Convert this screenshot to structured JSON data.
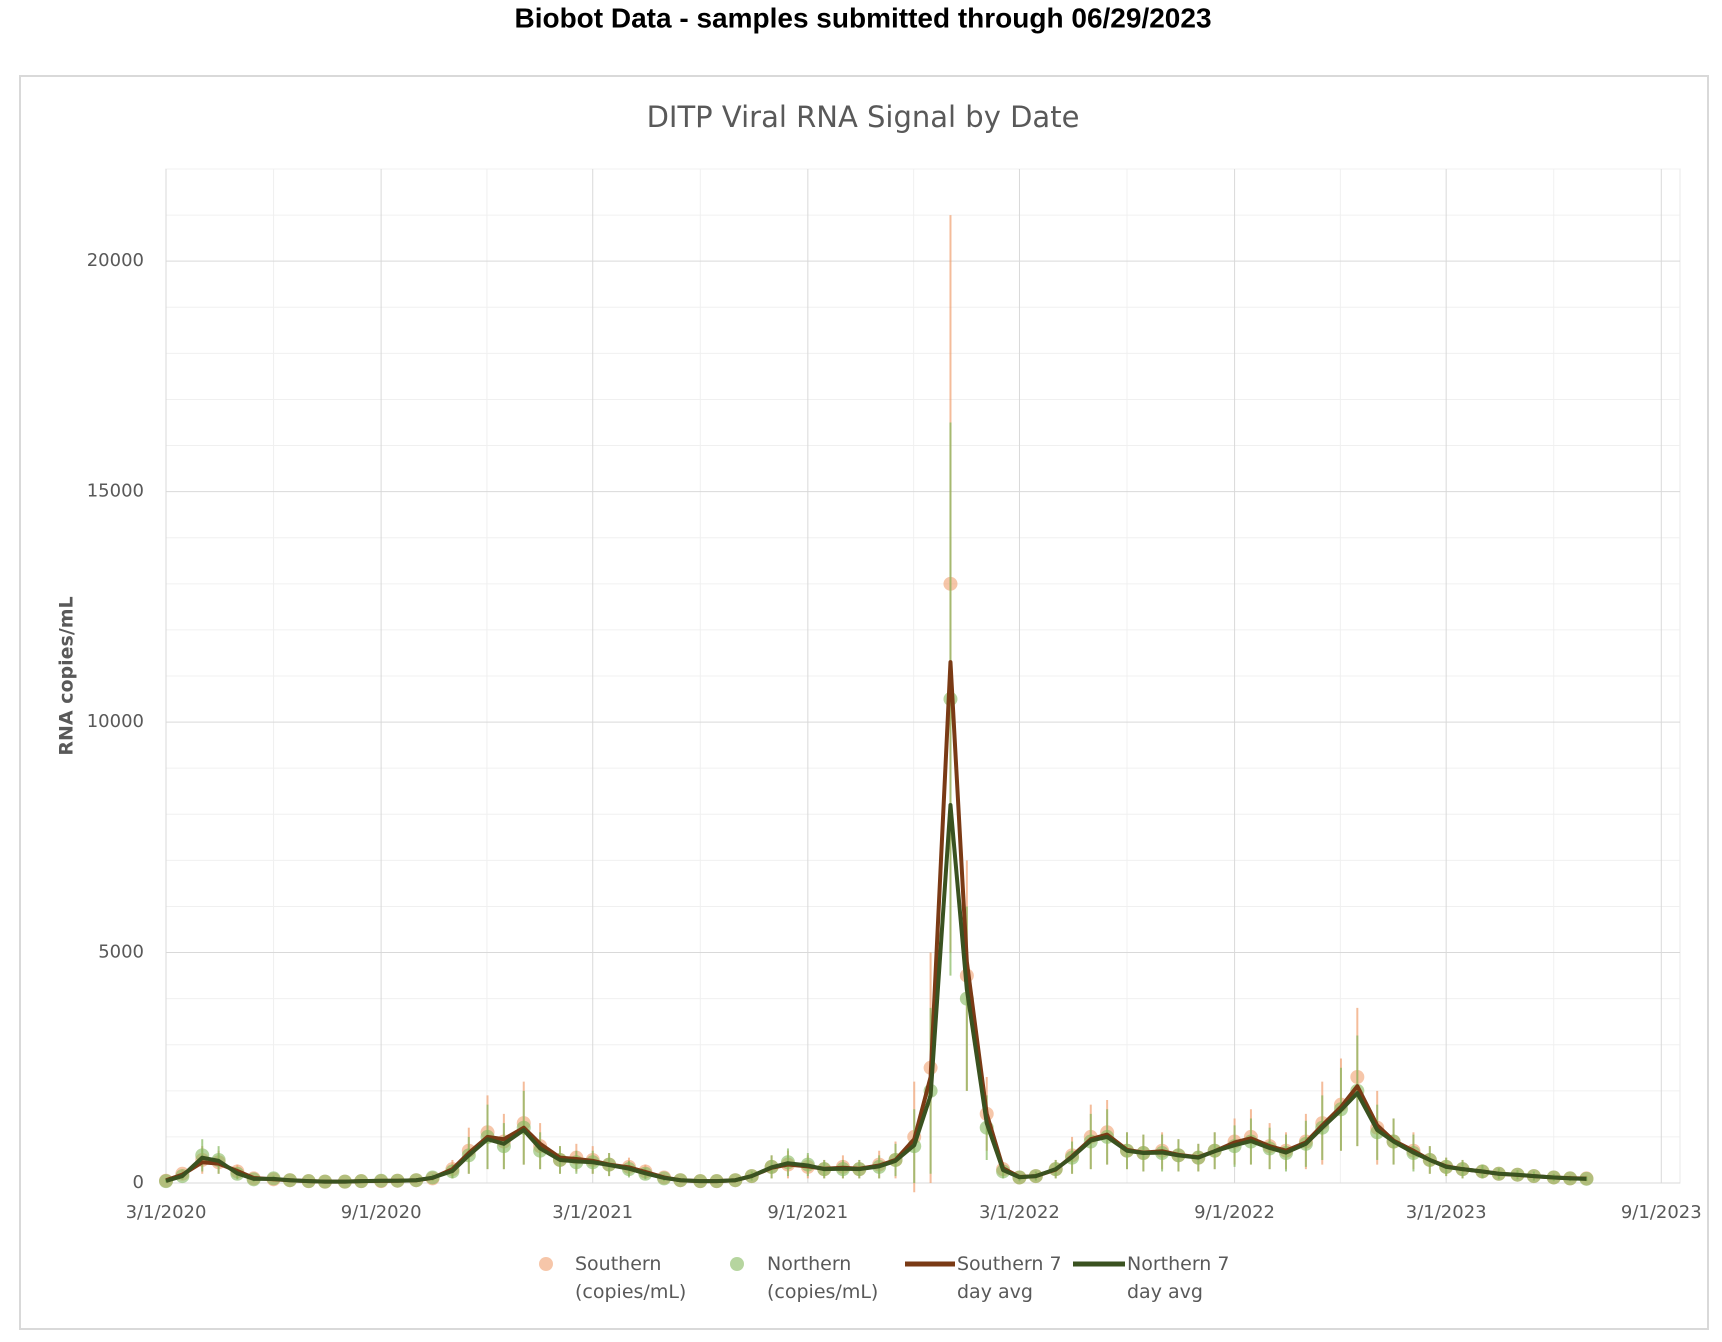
{
  "header": {
    "title": "Biobot Data - samples submitted through 06/29/2023"
  },
  "chart_data": {
    "type": "scatter",
    "title": "DITP Viral RNA Signal by Date",
    "y_label": "RNA copies/mL",
    "x": [
      "3/1/2020",
      "3/15/2020",
      "4/1/2020",
      "4/15/2020",
      "5/1/2020",
      "5/15/2020",
      "6/1/2020",
      "6/15/2020",
      "7/1/2020",
      "7/15/2020",
      "8/1/2020",
      "8/15/2020",
      "9/1/2020",
      "9/15/2020",
      "10/1/2020",
      "10/15/2020",
      "11/1/2020",
      "11/15/2020",
      "12/1/2020",
      "12/15/2020",
      "1/1/2021",
      "1/15/2021",
      "2/1/2021",
      "2/15/2021",
      "3/1/2021",
      "3/15/2021",
      "4/1/2021",
      "4/15/2021",
      "5/1/2021",
      "5/15/2021",
      "6/1/2021",
      "6/15/2021",
      "7/1/2021",
      "7/15/2021",
      "8/1/2021",
      "8/15/2021",
      "9/1/2021",
      "9/15/2021",
      "10/1/2021",
      "10/15/2021",
      "11/1/2021",
      "11/15/2021",
      "12/1/2021",
      "12/15/2021",
      "1/1/2022",
      "1/15/2022",
      "2/1/2022",
      "2/15/2022",
      "3/1/2022",
      "3/15/2022",
      "4/1/2022",
      "4/15/2022",
      "5/1/2022",
      "5/15/2022",
      "6/1/2022",
      "6/15/2022",
      "7/1/2022",
      "7/15/2022",
      "8/1/2022",
      "8/15/2022",
      "9/1/2022",
      "9/15/2022",
      "10/1/2022",
      "10/15/2022",
      "11/1/2022",
      "11/15/2022",
      "12/1/2022",
      "12/15/2022",
      "1/1/2023",
      "1/15/2023",
      "2/1/2023",
      "2/15/2023",
      "3/1/2023",
      "3/15/2023",
      "4/1/2023",
      "4/15/2023",
      "5/1/2023",
      "5/15/2023",
      "6/1/2023",
      "6/15/2023",
      "6/29/2023"
    ],
    "series": [
      {
        "name": "Southern (copies/mL)",
        "type": "scatter",
        "color": "#f0a070",
        "values": [
          50,
          200,
          500,
          450,
          250,
          100,
          80,
          60,
          40,
          30,
          30,
          40,
          40,
          50,
          60,
          100,
          300,
          700,
          1100,
          900,
          1300,
          800,
          500,
          550,
          500,
          400,
          350,
          250,
          120,
          60,
          40,
          40,
          60,
          150,
          350,
          400,
          350,
          300,
          350,
          300,
          400,
          500,
          1000,
          2500,
          13000,
          4500,
          1500,
          300,
          120,
          150,
          300,
          600,
          1000,
          1100,
          700,
          650,
          700,
          600,
          550,
          700,
          900,
          1000,
          800,
          700,
          900,
          1300,
          1700,
          2300,
          1200,
          900,
          700,
          500,
          350,
          300,
          250,
          200,
          180,
          150,
          120,
          100,
          100
        ],
        "errors": [
          30,
          100,
          300,
          250,
          150,
          60,
          50,
          40,
          30,
          20,
          20,
          30,
          30,
          30,
          40,
          60,
          200,
          500,
          800,
          600,
          900,
          500,
          300,
          300,
          300,
          250,
          200,
          150,
          80,
          40,
          30,
          30,
          40,
          100,
          250,
          300,
          250,
          200,
          250,
          200,
          300,
          400,
          1200,
          2500,
          8000,
          2500,
          800,
          150,
          80,
          100,
          200,
          400,
          700,
          700,
          400,
          400,
          400,
          350,
          300,
          400,
          500,
          600,
          500,
          400,
          600,
          900,
          1000,
          1500,
          800,
          500,
          400,
          300,
          200,
          200,
          150,
          120,
          100,
          100,
          80,
          60,
          60
        ]
      },
      {
        "name": "Northern (copies/mL)",
        "type": "scatter",
        "color": "#86b95f",
        "values": [
          40,
          150,
          600,
          500,
          200,
          80,
          100,
          60,
          40,
          30,
          30,
          40,
          50,
          50,
          60,
          120,
          250,
          600,
          1000,
          800,
          1200,
          700,
          500,
          450,
          450,
          400,
          300,
          200,
          100,
          60,
          40,
          40,
          60,
          150,
          350,
          450,
          400,
          300,
          300,
          300,
          350,
          500,
          800,
          2000,
          10500,
          4000,
          1200,
          250,
          120,
          150,
          300,
          550,
          900,
          1000,
          700,
          650,
          650,
          600,
          550,
          700,
          800,
          900,
          750,
          650,
          850,
          1200,
          1600,
          2000,
          1100,
          900,
          650,
          500,
          350,
          300,
          250,
          200,
          180,
          150,
          120,
          100,
          90
        ],
        "errors": [
          25,
          80,
          350,
          300,
          120,
          50,
          60,
          40,
          25,
          20,
          20,
          25,
          30,
          30,
          40,
          70,
          150,
          400,
          700,
          500,
          800,
          400,
          300,
          250,
          250,
          250,
          180,
          120,
          60,
          40,
          25,
          25,
          40,
          100,
          250,
          300,
          250,
          200,
          200,
          200,
          250,
          350,
          800,
          1800,
          6000,
          2000,
          700,
          150,
          80,
          100,
          200,
          350,
          600,
          600,
          400,
          400,
          400,
          350,
          300,
          400,
          450,
          500,
          450,
          400,
          500,
          700,
          900,
          1200,
          600,
          500,
          400,
          300,
          200,
          200,
          150,
          120,
          100,
          100,
          80,
          60,
          50
        ]
      },
      {
        "name": "Southern 7 day avg",
        "type": "line",
        "color": "#7a3a15",
        "values": [
          60,
          180,
          450,
          420,
          260,
          110,
          80,
          60,
          40,
          30,
          30,
          40,
          45,
          50,
          60,
          110,
          300,
          650,
          1000,
          950,
          1200,
          850,
          550,
          520,
          480,
          400,
          340,
          240,
          120,
          60,
          40,
          40,
          60,
          150,
          330,
          400,
          360,
          310,
          330,
          310,
          380,
          500,
          950,
          2300,
          11300,
          4800,
          1500,
          320,
          130,
          150,
          290,
          580,
          950,
          1050,
          720,
          660,
          690,
          610,
          560,
          690,
          880,
          970,
          800,
          700,
          880,
          1250,
          1650,
          2100,
          1250,
          920,
          700,
          500,
          360,
          300,
          250,
          200,
          175,
          150,
          120,
          105,
          95
        ]
      },
      {
        "name": "Northern 7 day avg",
        "type": "line",
        "color": "#3a5220",
        "values": [
          45,
          150,
          550,
          480,
          210,
          90,
          90,
          60,
          40,
          30,
          30,
          40,
          48,
          50,
          60,
          115,
          260,
          600,
          950,
          850,
          1150,
          750,
          500,
          470,
          450,
          390,
          310,
          210,
          110,
          60,
          40,
          40,
          60,
          150,
          340,
          430,
          380,
          300,
          310,
          300,
          360,
          480,
          820,
          1900,
          8200,
          4200,
          1300,
          280,
          125,
          150,
          300,
          560,
          920,
          1000,
          700,
          650,
          660,
          600,
          550,
          690,
          820,
          910,
          760,
          660,
          850,
          1200,
          1580,
          1950,
          1150,
          900,
          660,
          500,
          350,
          300,
          250,
          200,
          180,
          150,
          120,
          100,
          90
        ]
      }
    ],
    "xlim": [
      "3/1/2020",
      "9/17/2023"
    ],
    "xticks": [
      "3/1/2020",
      "9/1/2020",
      "3/1/2021",
      "9/1/2021",
      "3/1/2022",
      "9/1/2022",
      "3/1/2023",
      "9/1/2023"
    ],
    "ylim": [
      0,
      22000
    ],
    "yticks": [
      0,
      5000,
      10000,
      15000,
      20000
    ],
    "grid": true
  }
}
